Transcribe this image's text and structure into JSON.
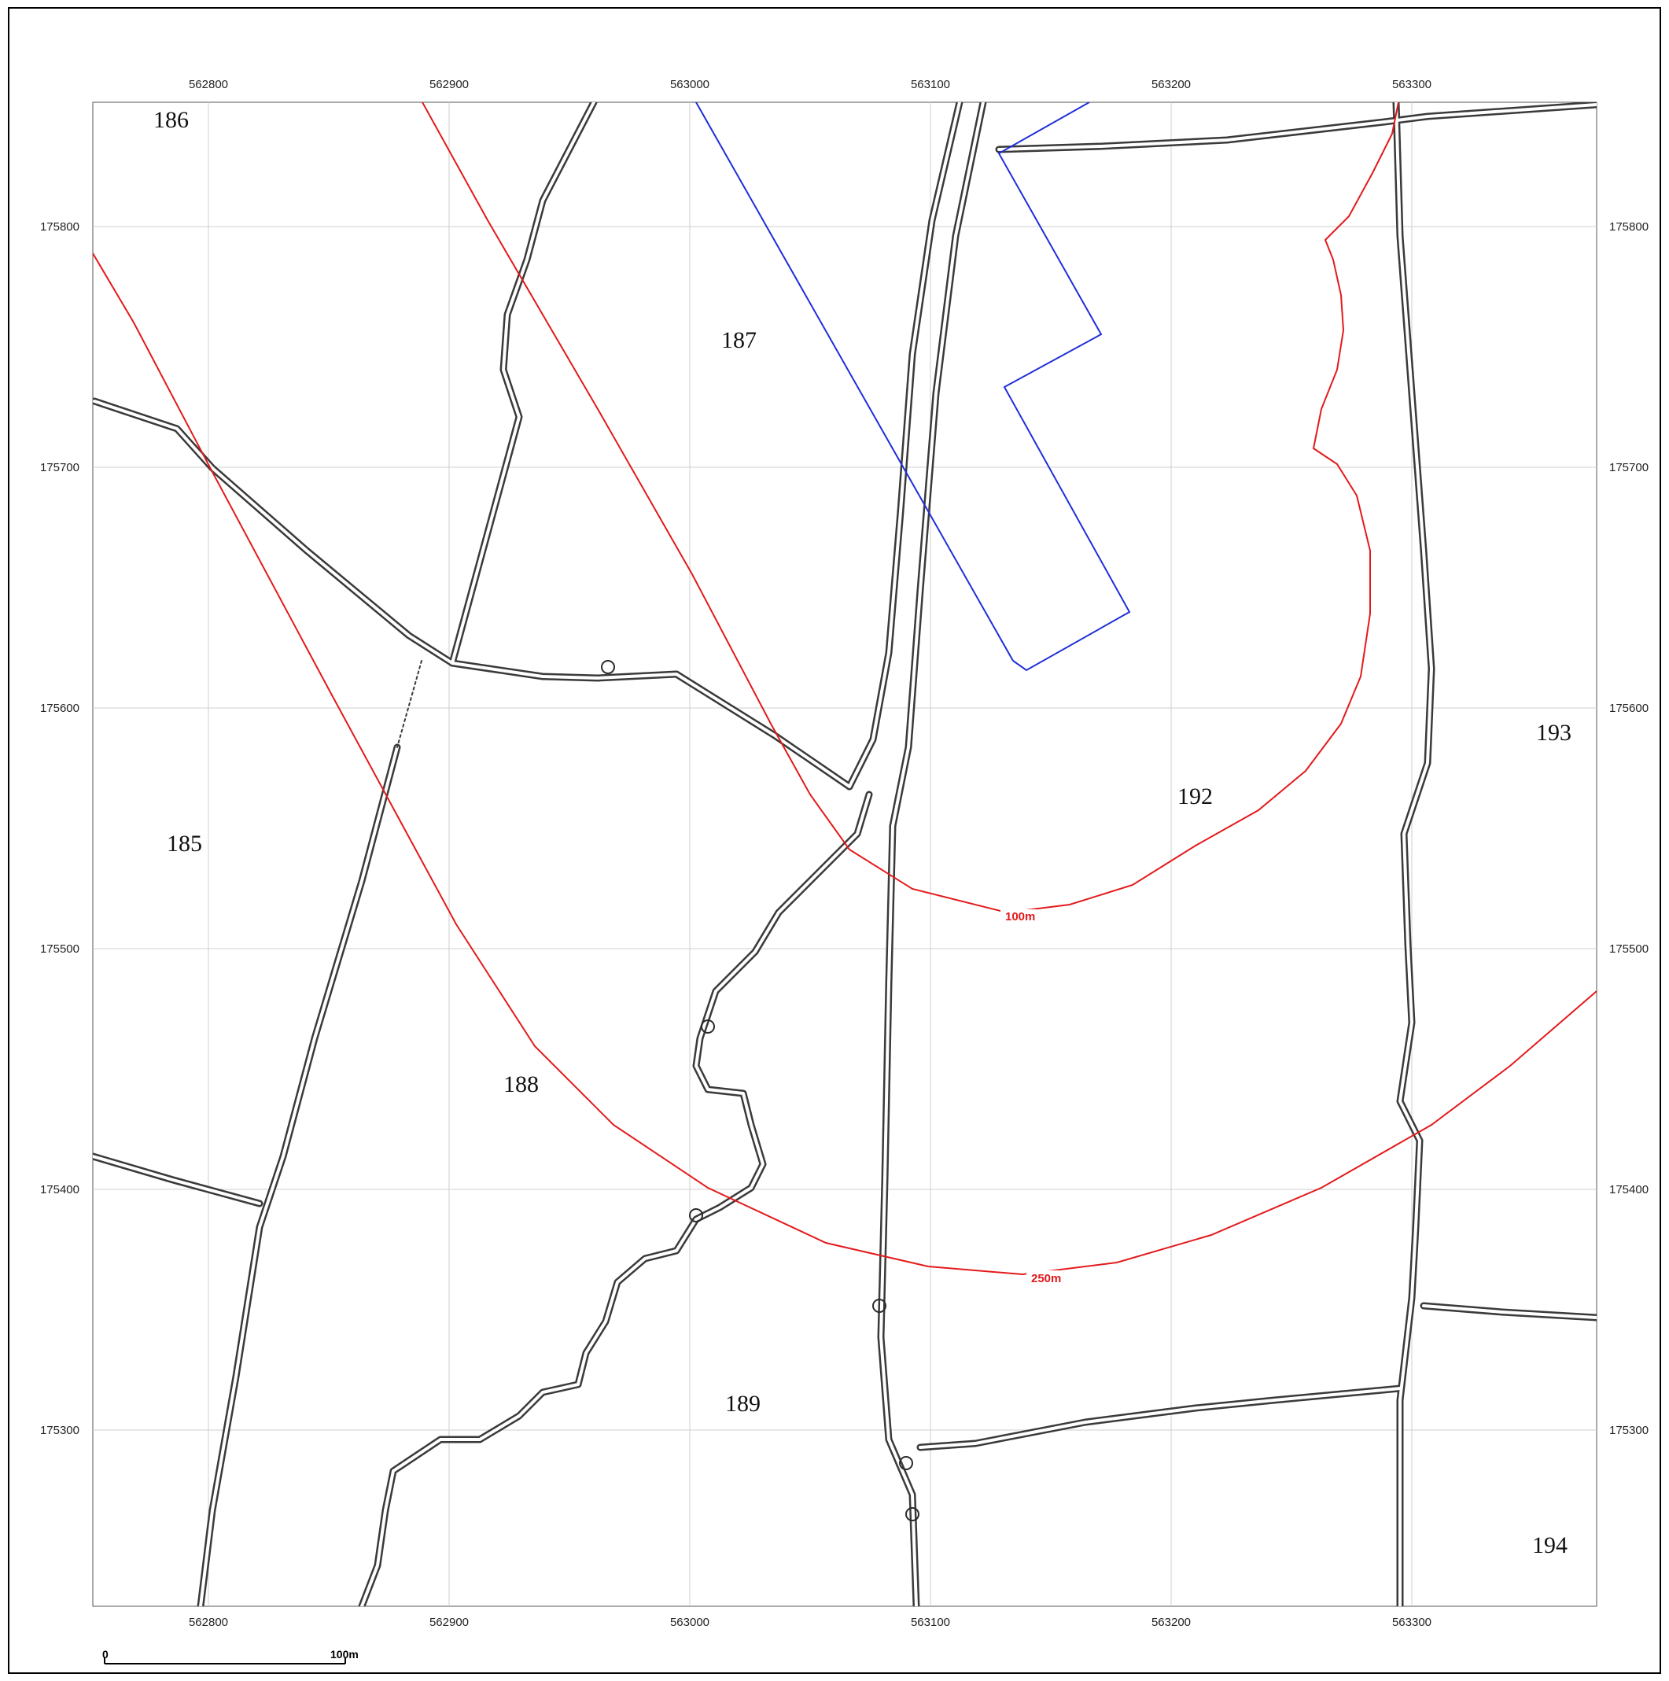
{
  "map": {
    "x_ticks": [
      "562800",
      "562900",
      "563000",
      "563100",
      "563200",
      "563300"
    ],
    "y_ticks": [
      "175800",
      "175700",
      "175600",
      "175500",
      "175400",
      "175300"
    ],
    "parcels": [
      "186",
      "187",
      "185",
      "188",
      "189",
      "192",
      "193",
      "194"
    ],
    "buffers": [
      {
        "label": "100m",
        "color": "#e31a1c"
      },
      {
        "label": "250m",
        "color": "#e31a1c"
      }
    ],
    "site_boundary_color": "#1f2fd8",
    "basemap_line_color": "#3a3a3a"
  },
  "scale_bar": {
    "start": "0",
    "end": "100m"
  }
}
